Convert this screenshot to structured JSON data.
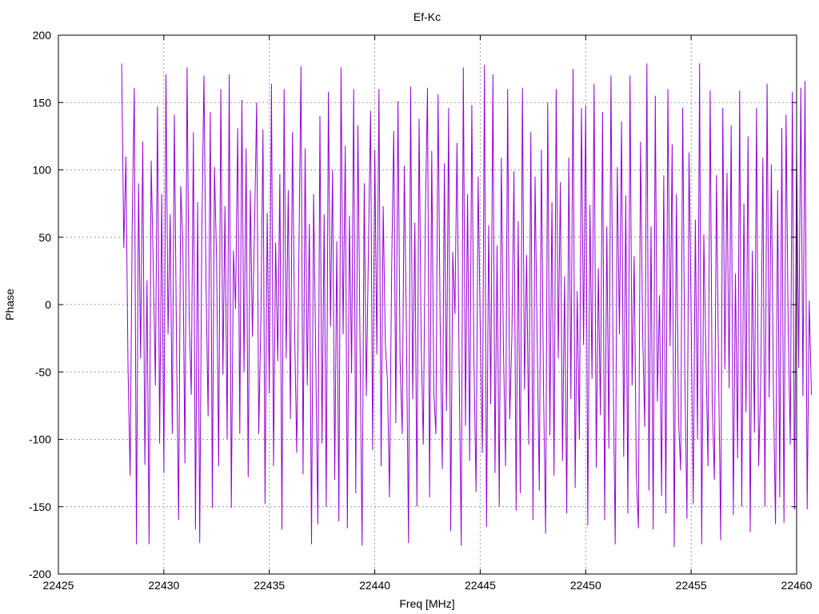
{
  "chart_data": {
    "type": "line",
    "title": "Ef-Kc",
    "xlabel": "Freq [MHz]",
    "ylabel": "Phase",
    "xlim": [
      22425,
      22460
    ],
    "ylim": [
      -200,
      200
    ],
    "x_ticks": [
      "22425",
      "22430",
      "22435",
      "22440",
      "22445",
      "22450",
      "22455",
      "22460"
    ],
    "y_ticks": [
      "200",
      "150",
      "100",
      "50",
      "0",
      "-50",
      "-100",
      "-150",
      "-200"
    ],
    "grid": true,
    "series": [
      {
        "name": "Ef-Kc",
        "color": "#9400d3",
        "x_start": 22428.0,
        "x_step": 0.1,
        "values": [
          179,
          42,
          110,
          -45,
          -127,
          60,
          161,
          -178,
          90,
          -40,
          121,
          -119,
          18,
          -178,
          107,
          25,
          -60,
          147,
          -103,
          82,
          -125,
          171,
          -22,
          67,
          -96,
          141,
          -31,
          -160,
          88,
          45,
          -118,
          176,
          -8,
          -67,
          128,
          -167,
          76,
          -177,
          52,
          170,
          15,
          -83,
          143,
          -151,
          102,
          34,
          -120,
          160,
          -52,
          73,
          -100,
          171,
          -151,
          40,
          -3,
          131,
          -96,
          152,
          -50,
          116,
          -128,
          85,
          -24,
          60,
          150,
          -96,
          -11,
          130,
          -148,
          68,
          -66,
          164,
          -120,
          46,
          -42,
          97,
          -167,
          160,
          -40,
          85,
          -85,
          128,
          -20,
          -110,
          30,
          177,
          -126,
          116,
          -60,
          60,
          -178,
          82,
          -36,
          -163,
          140,
          -103,
          67,
          -150,
          158,
          -16,
          100,
          -130,
          47,
          -161,
          176,
          -22,
          118,
          -166,
          66,
          -51,
          160,
          -140,
          133,
          -28,
          -179,
          90,
          -68,
          43,
          144,
          -108,
          115,
          -37,
          160,
          -120,
          73,
          -29,
          -56,
          -143,
          27,
          129,
          -88,
          151,
          -41,
          -96,
          103,
          -17,
          -177,
          162,
          -70,
          61,
          -150,
          138,
          -28,
          -104,
          68,
          161,
          -143,
          114,
          -65,
          -96,
          156,
          -12,
          -122,
          105,
          -79,
          146,
          -168,
          39,
          -7,
          120,
          -50,
          -179,
          176,
          -90,
          82,
          -116,
          148,
          -39,
          -139,
          95,
          -15,
          -110,
          178,
          -165,
          59,
          -74,
          171,
          -125,
          44,
          -150,
          109,
          -30,
          -120,
          160,
          -85,
          -24,
          99,
          -153,
          62,
          -140,
          161,
          -63,
          37,
          -104,
          128,
          -160,
          95,
          -26,
          -138,
          115,
          -60,
          -170,
          150,
          -97,
          76,
          -127,
          160,
          -40,
          91,
          -116,
          21,
          -155,
          109,
          -70,
          175,
          -136,
          10,
          -100,
          146,
          -30,
          148,
          -164,
          74,
          -55,
          164,
          -121,
          27,
          -82,
          143,
          -160,
          58,
          -107,
          170,
          -45,
          -178,
          102,
          -22,
          136,
          -113,
          81,
          -155,
          170,
          -60,
          36,
          -126,
          -166,
          121,
          -20,
          -91,
          179,
          -138,
          58,
          -167,
          155,
          -72,
          7,
          -142,
          96,
          -155,
          160,
          -31,
          119,
          -180,
          82,
          -84,
          -123,
          146,
          -49,
          -159,
          113,
          -7,
          -148,
          63,
          -100,
          179,
          -178,
          52,
          -37,
          -120,
          159,
          -74,
          -130,
          96,
          -47,
          -175,
          146,
          -48,
          98,
          -62,
          133,
          -156,
          23,
          -114,
          159,
          -150,
          75,
          -80,
          125,
          -169,
          40,
          -95,
          146,
          -120,
          -58,
          109,
          -150,
          164,
          -69,
          104,
          -64,
          -163,
          85,
          -143,
          131,
          -162,
          141,
          -18,
          -104,
          158,
          -152,
          116,
          -47,
          161,
          -68,
          166,
          -152,
          3,
          -67
        ]
      }
    ]
  }
}
